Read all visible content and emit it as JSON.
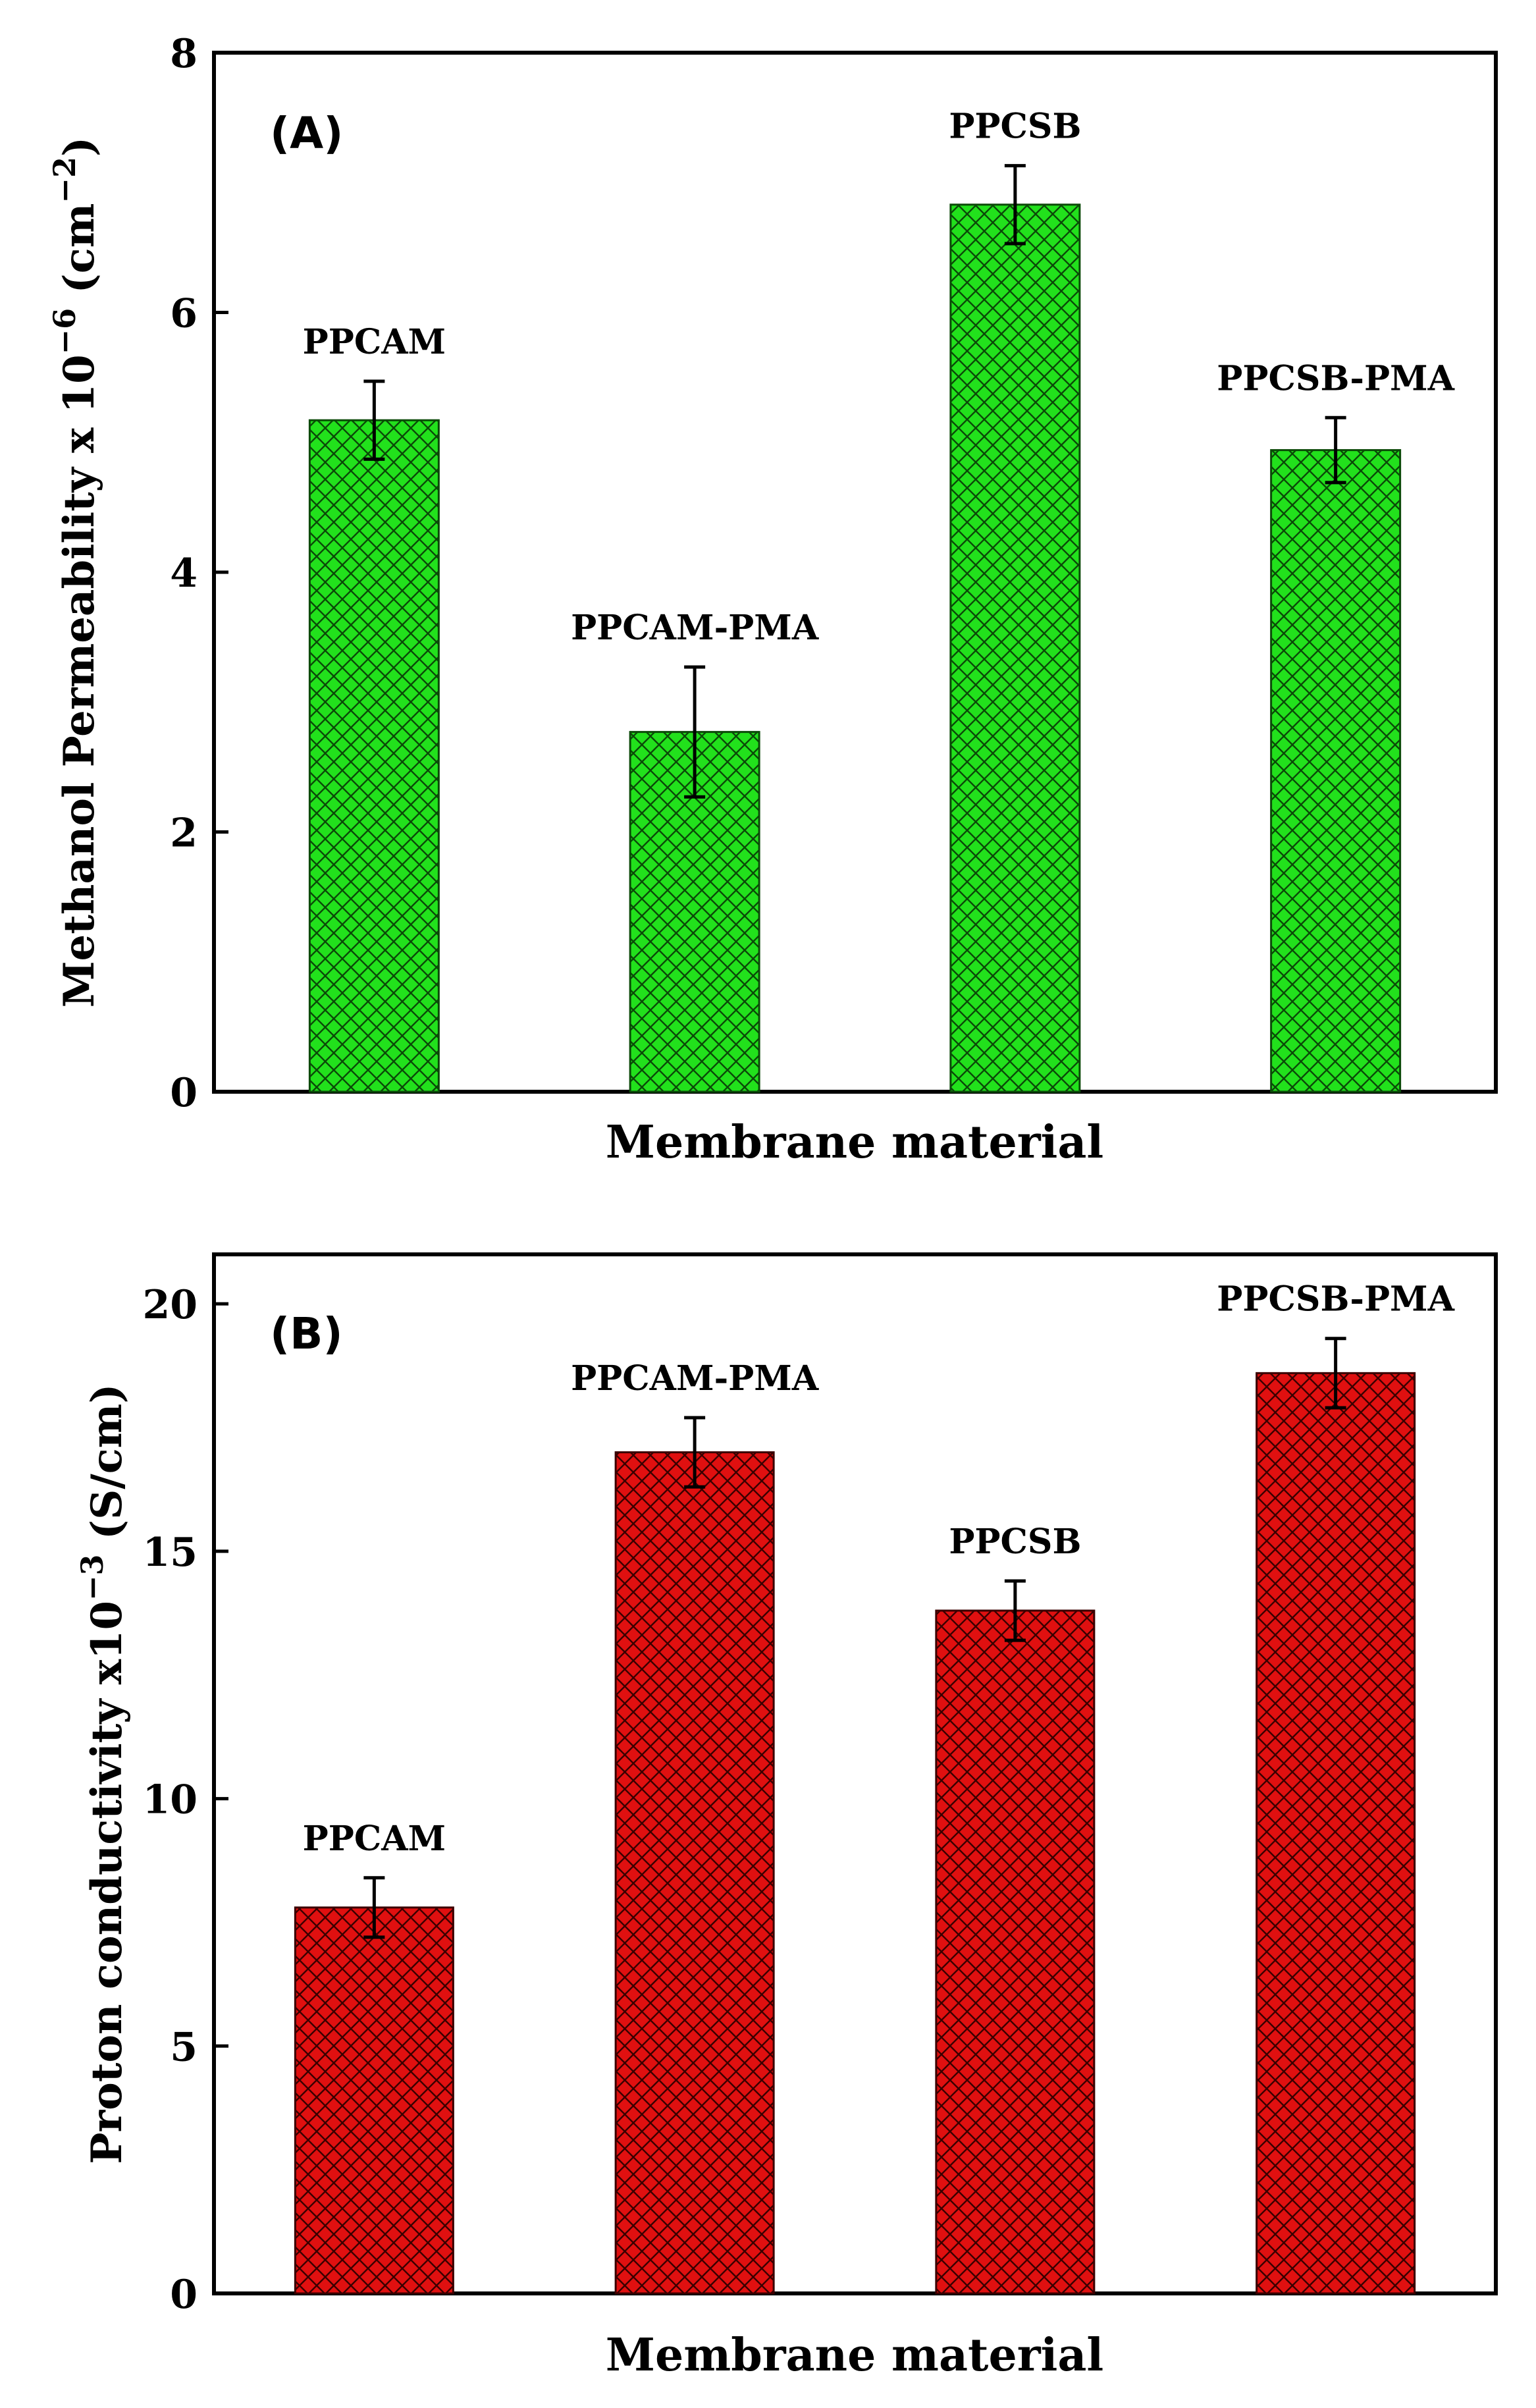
{
  "chart_data": [
    {
      "type": "bar",
      "panel_label": "(A)",
      "title": "",
      "xlabel": "Membrane material",
      "ylabel": {
        "main": "Methanol Permeability x 10",
        "exponent": "−6",
        "unit_open": " (cm",
        "unit_exponent": "−2",
        "unit_close": ")"
      },
      "ylim": [
        0,
        8
      ],
      "yticks": [
        0,
        2,
        4,
        6,
        8
      ],
      "tick_labels": [
        "0",
        "2",
        "4",
        "6",
        "8"
      ],
      "categories": [
        "PPCAM",
        "PPCAM-PMA",
        "PPCSB",
        "PPCSB-PMA"
      ],
      "values": [
        5.17,
        2.77,
        6.83,
        4.94
      ],
      "errors": [
        0.3,
        0.5,
        0.3,
        0.25
      ],
      "bar_color": "#22e11c",
      "hatch_color": "#0b4a08",
      "grid": false,
      "legend": "none"
    },
    {
      "type": "bar",
      "panel_label": "(B)",
      "title": "",
      "xlabel": "Membrane material",
      "ylabel": {
        "main": "Proton conductivity x10",
        "exponent": "−3",
        "unit_open": " (S/cm)",
        "unit_exponent": "",
        "unit_close": ""
      },
      "ylim": [
        0,
        21
      ],
      "yticks": [
        0,
        5,
        10,
        15,
        20
      ],
      "tick_labels": [
        "0",
        "5",
        "10",
        "15",
        "20"
      ],
      "categories": [
        "PPCAM",
        "PPCAM-PMA",
        "PPCSB",
        "PPCSB-PMA"
      ],
      "values": [
        7.8,
        17.0,
        13.8,
        18.6
      ],
      "errors": [
        0.6,
        0.7,
        0.6,
        0.7
      ],
      "bar_color": "#e01010",
      "hatch_color": "#3a0000",
      "grid": false,
      "legend": "none"
    }
  ]
}
